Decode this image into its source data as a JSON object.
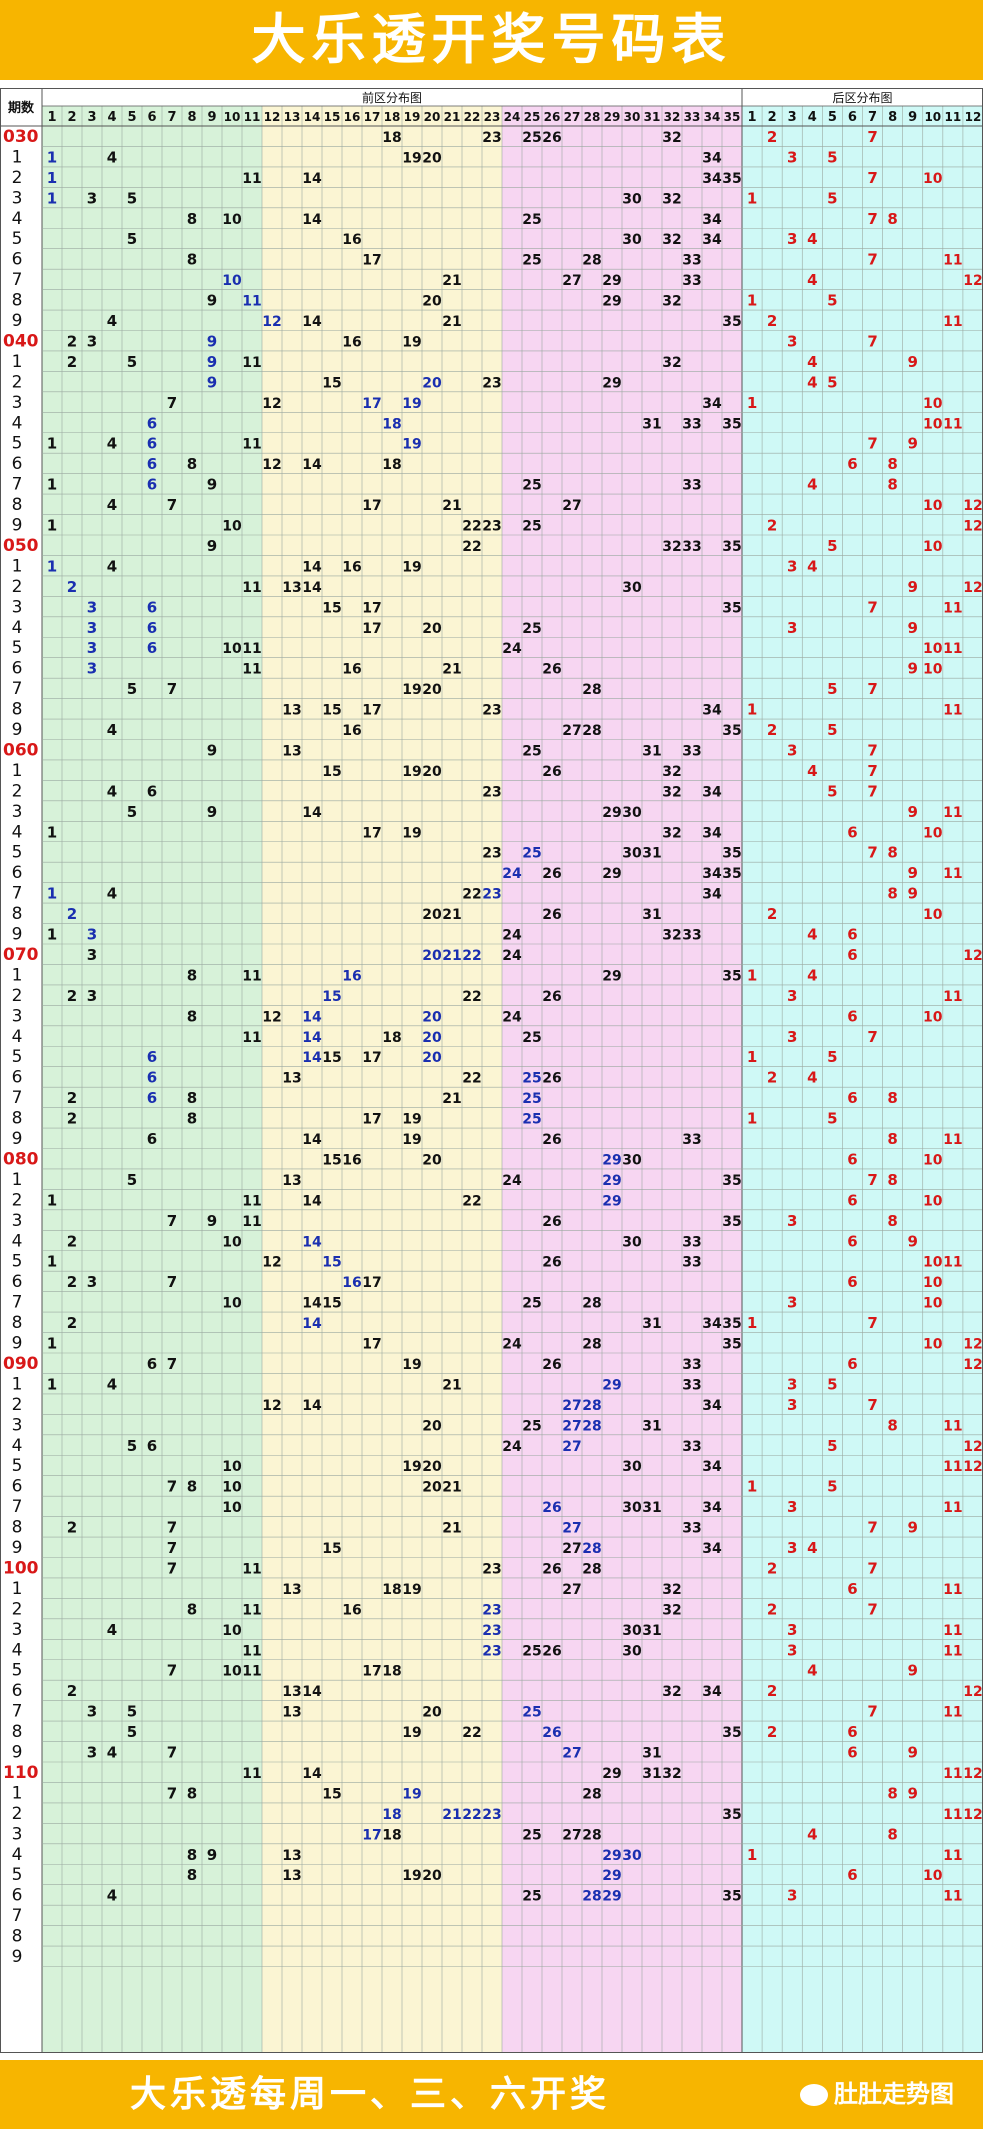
{
  "title": "大乐透开奖号码表",
  "footer": {
    "text": "大乐透每周一、三、六开奖",
    "brand": "肚肚走势图"
  },
  "header": {
    "period_label": "期数",
    "front_label": "前区分布图",
    "back_label": "后区分布图"
  },
  "colors": {
    "banner": "#f7b500",
    "zone1": "#d7f2d9",
    "zone2": "#fbf5d3",
    "zone3": "#f7d6f2",
    "back": "#cff9f6",
    "grid": "#9aa8a0",
    "normal_num": "#111111",
    "repeat_num": "#1a2fb0",
    "back_num": "#d81818",
    "period_tens": "#d81818"
  },
  "front_numbers": [
    "1",
    "2",
    "3",
    "4",
    "5",
    "6",
    "7",
    "8",
    "9",
    "10",
    "11",
    "12",
    "13",
    "14",
    "15",
    "16",
    "17",
    "18",
    "19",
    "20",
    "21",
    "22",
    "23",
    "24",
    "25",
    "26",
    "27",
    "28",
    "29",
    "30",
    "31",
    "32",
    "33",
    "34",
    "35"
  ],
  "back_numbers": [
    "1",
    "2",
    "3",
    "4",
    "5",
    "6",
    "7",
    "8",
    "9",
    "10",
    "11",
    "12"
  ],
  "rows": [
    {
      "p": "030",
      "f": [
        18,
        23,
        25,
        26,
        32
      ],
      "b": [
        2,
        7
      ],
      "r": []
    },
    {
      "p": "1",
      "f": [
        1,
        4,
        19,
        20,
        34
      ],
      "b": [
        3,
        5
      ],
      "r": [
        1
      ]
    },
    {
      "p": "2",
      "f": [
        1,
        11,
        14,
        34,
        35
      ],
      "b": [
        7,
        10
      ],
      "r": [
        1
      ]
    },
    {
      "p": "3",
      "f": [
        1,
        3,
        5,
        30,
        32
      ],
      "b": [
        1,
        5
      ],
      "r": [
        1
      ]
    },
    {
      "p": "4",
      "f": [
        8,
        10,
        14,
        25,
        34
      ],
      "b": [
        7,
        8
      ],
      "r": []
    },
    {
      "p": "5",
      "f": [
        5,
        16,
        30,
        32,
        34
      ],
      "b": [
        3,
        4
      ],
      "r": []
    },
    {
      "p": "6",
      "f": [
        8,
        17,
        25,
        28,
        33
      ],
      "b": [
        7,
        11
      ],
      "r": []
    },
    {
      "p": "7",
      "f": [
        10,
        21,
        27,
        29,
        33
      ],
      "b": [
        4,
        12
      ],
      "r": [
        10
      ]
    },
    {
      "p": "8",
      "f": [
        9,
        11,
        20,
        29,
        32
      ],
      "b": [
        1,
        5
      ],
      "r": [
        11
      ]
    },
    {
      "p": "9",
      "f": [
        4,
        12,
        14,
        21,
        35
      ],
      "b": [
        2,
        11
      ],
      "r": [
        12
      ]
    },
    {
      "p": "040",
      "f": [
        2,
        3,
        9,
        16,
        19
      ],
      "b": [
        3,
        7
      ],
      "r": [
        9
      ]
    },
    {
      "p": "1",
      "f": [
        2,
        5,
        9,
        11,
        32
      ],
      "b": [
        4,
        9
      ],
      "r": [
        9
      ]
    },
    {
      "p": "2",
      "f": [
        9,
        15,
        20,
        23,
        29
      ],
      "b": [
        4,
        5
      ],
      "r": [
        9,
        20
      ]
    },
    {
      "p": "3",
      "f": [
        7,
        12,
        17,
        19,
        34
      ],
      "b": [
        1,
        10
      ],
      "r": [
        17,
        19
      ]
    },
    {
      "p": "4",
      "f": [
        6,
        18,
        31,
        33,
        35
      ],
      "b": [
        10,
        11
      ],
      "r": [
        6,
        18
      ]
    },
    {
      "p": "5",
      "f": [
        1,
        4,
        6,
        11,
        19
      ],
      "b": [
        7,
        9
      ],
      "r": [
        6,
        19
      ]
    },
    {
      "p": "6",
      "f": [
        6,
        8,
        12,
        14,
        18
      ],
      "b": [
        6,
        8
      ],
      "r": [
        6
      ]
    },
    {
      "p": "7",
      "f": [
        1,
        6,
        9,
        25,
        33
      ],
      "b": [
        4,
        8
      ],
      "r": [
        6
      ]
    },
    {
      "p": "8",
      "f": [
        4,
        7,
        17,
        21,
        27
      ],
      "b": [
        10,
        12
      ],
      "r": []
    },
    {
      "p": "9",
      "f": [
        1,
        10,
        22,
        23,
        25
      ],
      "b": [
        2,
        12
      ],
      "r": []
    },
    {
      "p": "050",
      "f": [
        9,
        22,
        32,
        33,
        35
      ],
      "b": [
        5,
        10
      ],
      "r": []
    },
    {
      "p": "1",
      "f": [
        1,
        4,
        14,
        16,
        19
      ],
      "b": [
        3,
        4
      ],
      "r": [
        1
      ]
    },
    {
      "p": "2",
      "f": [
        2,
        11,
        13,
        14,
        30
      ],
      "b": [
        9,
        12
      ],
      "r": [
        2
      ]
    },
    {
      "p": "3",
      "f": [
        3,
        6,
        15,
        17,
        35
      ],
      "b": [
        7,
        11
      ],
      "r": [
        3,
        6
      ]
    },
    {
      "p": "4",
      "f": [
        3,
        6,
        17,
        20,
        25
      ],
      "b": [
        3,
        9
      ],
      "r": [
        3,
        6
      ]
    },
    {
      "p": "5",
      "f": [
        3,
        6,
        10,
        11,
        24
      ],
      "b": [
        10,
        11
      ],
      "r": [
        3,
        6
      ]
    },
    {
      "p": "6",
      "f": [
        3,
        11,
        16,
        21,
        26
      ],
      "b": [
        9,
        10
      ],
      "r": [
        3
      ]
    },
    {
      "p": "7",
      "f": [
        5,
        7,
        19,
        20,
        28
      ],
      "b": [
        5,
        7
      ],
      "r": []
    },
    {
      "p": "8",
      "f": [
        13,
        15,
        17,
        23,
        34
      ],
      "b": [
        1,
        11
      ],
      "r": []
    },
    {
      "p": "9",
      "f": [
        4,
        16,
        27,
        28,
        35
      ],
      "b": [
        2,
        5
      ],
      "r": []
    },
    {
      "p": "060",
      "f": [
        9,
        13,
        25,
        31,
        33
      ],
      "b": [
        3,
        7
      ],
      "r": []
    },
    {
      "p": "1",
      "f": [
        15,
        19,
        20,
        26,
        32
      ],
      "b": [
        4,
        7
      ],
      "r": []
    },
    {
      "p": "2",
      "f": [
        4,
        6,
        23,
        32,
        34
      ],
      "b": [
        5,
        7
      ],
      "r": []
    },
    {
      "p": "3",
      "f": [
        5,
        9,
        14,
        29,
        30
      ],
      "b": [
        9,
        11
      ],
      "r": []
    },
    {
      "p": "4",
      "f": [
        1,
        17,
        19,
        32,
        34
      ],
      "b": [
        6,
        10
      ],
      "r": []
    },
    {
      "p": "5",
      "f": [
        23,
        25,
        30,
        31,
        35
      ],
      "b": [
        7,
        8
      ],
      "r": [
        25
      ]
    },
    {
      "p": "6",
      "f": [
        24,
        26,
        29,
        34,
        35
      ],
      "b": [
        9,
        11
      ],
      "r": [
        24
      ]
    },
    {
      "p": "7",
      "f": [
        1,
        4,
        22,
        23,
        34
      ],
      "b": [
        8,
        9
      ],
      "r": [
        1,
        23
      ]
    },
    {
      "p": "8",
      "f": [
        2,
        20,
        21,
        26,
        31
      ],
      "b": [
        2,
        10
      ],
      "r": [
        2
      ]
    },
    {
      "p": "9",
      "f": [
        1,
        3,
        24,
        32,
        33
      ],
      "b": [
        4,
        6
      ],
      "r": [
        3
      ]
    },
    {
      "p": "070",
      "f": [
        3,
        20,
        21,
        22,
        24
      ],
      "b": [
        6,
        12
      ],
      "r": [
        20,
        21,
        22
      ]
    },
    {
      "p": "1",
      "f": [
        8,
        11,
        16,
        29,
        35
      ],
      "b": [
        1,
        4
      ],
      "r": [
        16
      ]
    },
    {
      "p": "2",
      "f": [
        2,
        3,
        15,
        22,
        26
      ],
      "b": [
        3,
        11
      ],
      "r": [
        15
      ]
    },
    {
      "p": "3",
      "f": [
        8,
        12,
        14,
        20,
        24
      ],
      "b": [
        6,
        10
      ],
      "r": [
        14,
        20
      ]
    },
    {
      "p": "4",
      "f": [
        11,
        14,
        18,
        20,
        25
      ],
      "b": [
        3,
        7
      ],
      "r": [
        14,
        20
      ]
    },
    {
      "p": "5",
      "f": [
        6,
        14,
        15,
        17,
        20
      ],
      "b": [
        1,
        5
      ],
      "r": [
        6,
        14,
        20
      ]
    },
    {
      "p": "6",
      "f": [
        6,
        13,
        22,
        25,
        26
      ],
      "b": [
        2,
        4
      ],
      "r": [
        6,
        25
      ]
    },
    {
      "p": "7",
      "f": [
        2,
        6,
        8,
        21,
        25
      ],
      "b": [
        6,
        8
      ],
      "r": [
        6,
        25
      ]
    },
    {
      "p": "8",
      "f": [
        2,
        8,
        17,
        19,
        25
      ],
      "b": [
        1,
        5
      ],
      "r": [
        25
      ]
    },
    {
      "p": "9",
      "f": [
        6,
        14,
        19,
        26,
        33
      ],
      "b": [
        8,
        11
      ],
      "r": []
    },
    {
      "p": "080",
      "f": [
        15,
        16,
        20,
        29,
        30
      ],
      "b": [
        6,
        10
      ],
      "r": [
        29
      ]
    },
    {
      "p": "1",
      "f": [
        5,
        13,
        24,
        29,
        35
      ],
      "b": [
        7,
        8
      ],
      "r": [
        29
      ]
    },
    {
      "p": "2",
      "f": [
        1,
        11,
        14,
        22,
        29
      ],
      "b": [
        6,
        10
      ],
      "r": [
        29
      ]
    },
    {
      "p": "3",
      "f": [
        7,
        9,
        11,
        26,
        35
      ],
      "b": [
        3,
        8
      ],
      "r": []
    },
    {
      "p": "4",
      "f": [
        2,
        10,
        14,
        30,
        33
      ],
      "b": [
        6,
        9
      ],
      "r": [
        14
      ]
    },
    {
      "p": "5",
      "f": [
        1,
        12,
        15,
        26,
        33
      ],
      "b": [
        10,
        11
      ],
      "r": [
        15
      ]
    },
    {
      "p": "6",
      "f": [
        2,
        3,
        7,
        16,
        17
      ],
      "b": [
        6,
        10
      ],
      "r": [
        16
      ]
    },
    {
      "p": "7",
      "f": [
        10,
        14,
        15,
        25,
        28
      ],
      "b": [
        3,
        10
      ],
      "r": []
    },
    {
      "p": "8",
      "f": [
        2,
        14,
        31,
        34,
        35
      ],
      "b": [
        1,
        7
      ],
      "r": [
        14
      ]
    },
    {
      "p": "9",
      "f": [
        1,
        17,
        24,
        28,
        35
      ],
      "b": [
        10,
        12
      ],
      "r": []
    },
    {
      "p": "090",
      "f": [
        6,
        7,
        19,
        26,
        33
      ],
      "b": [
        6,
        12
      ],
      "r": []
    },
    {
      "p": "1",
      "f": [
        1,
        4,
        21,
        29,
        33
      ],
      "b": [
        3,
        5
      ],
      "r": [
        29
      ]
    },
    {
      "p": "2",
      "f": [
        12,
        14,
        27,
        28,
        34
      ],
      "b": [
        3,
        7
      ],
      "r": [
        27,
        28
      ]
    },
    {
      "p": "3",
      "f": [
        20,
        25,
        27,
        28,
        31
      ],
      "b": [
        8,
        11
      ],
      "r": [
        27,
        28
      ]
    },
    {
      "p": "4",
      "f": [
        5,
        6,
        24,
        27,
        33
      ],
      "b": [
        5,
        12
      ],
      "r": [
        27
      ]
    },
    {
      "p": "5",
      "f": [
        10,
        19,
        20,
        30,
        34
      ],
      "b": [
        11,
        12
      ],
      "r": []
    },
    {
      "p": "6",
      "f": [
        7,
        8,
        10,
        20,
        21
      ],
      "b": [
        1,
        5
      ],
      "r": []
    },
    {
      "p": "7",
      "f": [
        10,
        26,
        30,
        31,
        34
      ],
      "b": [
        3,
        11
      ],
      "r": [
        26
      ]
    },
    {
      "p": "8",
      "f": [
        2,
        7,
        21,
        27,
        33
      ],
      "b": [
        7,
        9
      ],
      "r": [
        27
      ]
    },
    {
      "p": "9",
      "f": [
        7,
        15,
        27,
        28,
        34
      ],
      "b": [
        3,
        4
      ],
      "r": [
        28
      ]
    },
    {
      "p": "100",
      "f": [
        7,
        11,
        23,
        26,
        28
      ],
      "b": [
        2,
        7
      ],
      "r": []
    },
    {
      "p": "1",
      "f": [
        13,
        18,
        19,
        27,
        32
      ],
      "b": [
        6,
        11
      ],
      "r": []
    },
    {
      "p": "2",
      "f": [
        8,
        11,
        16,
        23,
        32
      ],
      "b": [
        2,
        7
      ],
      "r": [
        23
      ]
    },
    {
      "p": "3",
      "f": [
        4,
        10,
        23,
        30,
        31
      ],
      "b": [
        3,
        11
      ],
      "r": [
        23
      ]
    },
    {
      "p": "4",
      "f": [
        11,
        23,
        25,
        26,
        30
      ],
      "b": [
        3,
        11
      ],
      "r": [
        23
      ]
    },
    {
      "p": "5",
      "f": [
        7,
        10,
        11,
        17,
        18
      ],
      "b": [
        4,
        9
      ],
      "r": []
    },
    {
      "p": "6",
      "f": [
        2,
        13,
        14,
        32,
        34
      ],
      "b": [
        2,
        12
      ],
      "r": []
    },
    {
      "p": "7",
      "f": [
        3,
        5,
        13,
        20,
        25
      ],
      "b": [
        7,
        11
      ],
      "r": [
        25
      ]
    },
    {
      "p": "8",
      "f": [
        5,
        19,
        22,
        26,
        35
      ],
      "b": [
        2,
        6
      ],
      "r": [
        26
      ]
    },
    {
      "p": "9",
      "f": [
        3,
        4,
        7,
        27,
        31
      ],
      "b": [
        6,
        9
      ],
      "r": [
        27
      ]
    },
    {
      "p": "110",
      "f": [
        11,
        14,
        29,
        31,
        32
      ],
      "b": [
        11,
        12
      ],
      "r": []
    },
    {
      "p": "1",
      "f": [
        7,
        8,
        15,
        19,
        28
      ],
      "b": [
        8,
        9
      ],
      "r": [
        19
      ]
    },
    {
      "p": "2",
      "f": [
        18,
        21,
        22,
        23,
        35
      ],
      "b": [
        11,
        12
      ],
      "r": [
        18,
        21,
        22,
        23
      ]
    },
    {
      "p": "3",
      "f": [
        17,
        18,
        25,
        27,
        28
      ],
      "b": [
        4,
        8
      ],
      "r": [
        17
      ]
    },
    {
      "p": "4",
      "f": [
        8,
        9,
        13,
        29,
        30
      ],
      "b": [
        1,
        11
      ],
      "r": [
        29,
        30
      ]
    },
    {
      "p": "5",
      "f": [
        8,
        13,
        19,
        20,
        29
      ],
      "b": [
        6,
        10
      ],
      "r": [
        29
      ]
    },
    {
      "p": "6",
      "f": [
        4,
        25,
        28,
        29,
        35
      ],
      "b": [
        3,
        11
      ],
      "r": [
        28,
        29
      ]
    },
    {
      "p": "7",
      "f": [],
      "b": [],
      "r": []
    },
    {
      "p": "8",
      "f": [],
      "b": [],
      "r": []
    },
    {
      "p": "9",
      "f": [],
      "b": [],
      "r": []
    }
  ]
}
